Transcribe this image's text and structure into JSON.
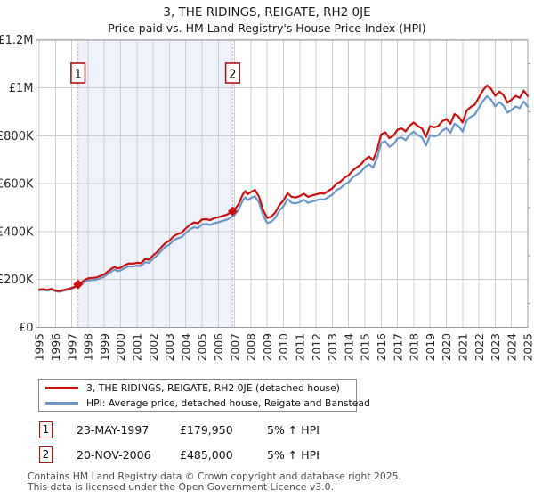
{
  "header": {
    "title": "3, THE RIDINGS, REIGATE, RH2 0JE",
    "subtitle": "Price paid vs. HM Land Registry's House Price Index (HPI)"
  },
  "chart_data": {
    "type": "line",
    "title": "3, THE RIDINGS, REIGATE, RH2 0JE",
    "subtitle": "Price paid vs. HM Land Registry's House Price Index (HPI)",
    "x_axis": {
      "ticks": [
        1995,
        1996,
        1997,
        1998,
        1999,
        2000,
        2001,
        2002,
        2003,
        2004,
        2005,
        2006,
        2007,
        2008,
        2009,
        2010,
        2011,
        2012,
        2013,
        2014,
        2015,
        2016,
        2017,
        2018,
        2019,
        2020,
        2021,
        2022,
        2023,
        2024,
        2025
      ],
      "range": [
        1994.8,
        2025.3
      ]
    },
    "y_axis": {
      "unit": "GBP thousands",
      "range_k": [
        0,
        1200
      ],
      "tick_values_k": [
        0,
        200,
        400,
        600,
        800,
        1000,
        1200
      ],
      "tick_labels": [
        "£0",
        "£200K",
        "£400K",
        "£600K",
        "£800K",
        "£1M",
        "£1.2M"
      ],
      "minor_tick_step_k": 100
    },
    "grid": true,
    "legend_position": "bottom-left",
    "x": [
      1995,
      1995.25,
      1995.5,
      1995.75,
      1996,
      1996.25,
      1996.5,
      1996.75,
      1997,
      1997.25,
      1997.39,
      1997.6,
      1997.8,
      1998,
      1998.25,
      1998.5,
      1998.75,
      1999,
      1999.25,
      1999.5,
      1999.65,
      1999.8,
      2000,
      2000.25,
      2000.5,
      2000.75,
      2001,
      2001.25,
      2001.5,
      2001.75,
      2002,
      2002.25,
      2002.5,
      2002.75,
      2003,
      2003.25,
      2003.5,
      2003.75,
      2004,
      2004.25,
      2004.5,
      2004.75,
      2005,
      2005.25,
      2005.5,
      2005.75,
      2006,
      2006.25,
      2006.5,
      2006.75,
      2006.88,
      2007,
      2007.25,
      2007.5,
      2007.65,
      2007.8,
      2008,
      2008.25,
      2008.5,
      2008.75,
      2009,
      2009.25,
      2009.5,
      2009.75,
      2010,
      2010.25,
      2010.5,
      2010.75,
      2011,
      2011.25,
      2011.5,
      2011.75,
      2012,
      2012.25,
      2012.5,
      2012.75,
      2013,
      2013.25,
      2013.5,
      2013.75,
      2014,
      2014.25,
      2014.5,
      2014.75,
      2015,
      2015.25,
      2015.5,
      2015.75,
      2016,
      2016.25,
      2016.5,
      2016.75,
      2017,
      2017.25,
      2017.5,
      2017.75,
      2018,
      2018.25,
      2018.5,
      2018.75,
      2019,
      2019.25,
      2019.5,
      2019.75,
      2020,
      2020.25,
      2020.5,
      2020.75,
      2021,
      2021.25,
      2021.5,
      2021.75,
      2022,
      2022.25,
      2022.5,
      2022.75,
      2023,
      2023.25,
      2023.5,
      2023.75,
      2024,
      2024.25,
      2024.5,
      2024.75,
      2025
    ],
    "series": [
      {
        "name": "3, THE RIDINGS, REIGATE, RH2 0JE (detached house)",
        "color": "#cc0f0f",
        "values_k": [
          158,
          160,
          157,
          161,
          154,
          152,
          156,
          160,
          165,
          172,
          180,
          188,
          198,
          205,
          207,
          208,
          215,
          222,
          235,
          248,
          252,
          246,
          249,
          260,
          267,
          266,
          270,
          268,
          285,
          283,
          301,
          315,
          335,
          352,
          362,
          380,
          390,
          395,
          413,
          428,
          438,
          435,
          450,
          452,
          448,
          456,
          460,
          465,
          470,
          480,
          485,
          492,
          515,
          555,
          569,
          556,
          565,
          574,
          545,
          490,
          457,
          462,
          480,
          510,
          530,
          560,
          545,
          542,
          548,
          558,
          545,
          550,
          555,
          560,
          558,
          570,
          580,
          600,
          608,
          625,
          635,
          655,
          668,
          680,
          700,
          713,
          698,
          740,
          806,
          814,
          790,
          800,
          825,
          830,
          818,
          842,
          855,
          840,
          830,
          795,
          840,
          835,
          840,
          860,
          870,
          850,
          890,
          880,
          855,
          905,
          920,
          930,
          960,
          990,
          1010,
          995,
          966,
          984,
          970,
          938,
          950,
          966,
          958,
          988,
          965
        ]
      },
      {
        "name": "HPI: Average price, detached house, Reigate and Banstead",
        "color": "#6b96c8",
        "values_k": [
          155,
          157,
          154,
          158,
          151,
          149,
          153,
          157,
          162,
          169,
          171,
          180,
          189,
          196,
          198,
          199,
          205,
          212,
          224,
          237,
          241,
          235,
          238,
          248,
          255,
          254,
          258,
          256,
          272,
          270,
          287,
          301,
          320,
          336,
          346,
          363,
          372,
          377,
          394,
          409,
          418,
          415,
          430,
          432,
          428,
          435,
          439,
          444,
          449,
          458,
          463,
          470,
          492,
          530,
          543,
          531,
          540,
          548,
          520,
          468,
          436,
          441,
          458,
          487,
          506,
          535,
          520,
          518,
          523,
          533,
          520,
          525,
          530,
          535,
          533,
          544,
          554,
          573,
          581,
          597,
          606,
          626,
          638,
          649,
          669,
          681,
          667,
          707,
          770,
          777,
          754,
          764,
          788,
          793,
          781,
          804,
          817,
          802,
          793,
          759,
          802,
          797,
          802,
          821,
          831,
          812,
          850,
          840,
          817,
          864,
          879,
          888,
          917,
          945,
          965,
          950,
          922,
          940,
          926,
          896,
          907,
          922,
          915,
          943,
          921
        ]
      }
    ],
    "sales": [
      {
        "label": "1",
        "date": "23-MAY-1997",
        "year": 1997.39,
        "price": "£179,950",
        "price_k": 179.95,
        "vs_hpi": "5% ↑ HPI"
      },
      {
        "label": "2",
        "date": "20-NOV-2006",
        "year": 2006.88,
        "price": "£485,000",
        "price_k": 485,
        "vs_hpi": "5% ↑ HPI"
      }
    ],
    "shaded_span_years": [
      1997.39,
      2006.88
    ],
    "colors": {
      "shade": "#eef2fb",
      "grid": "#cccccc",
      "border": "#9a9a9a",
      "dashed": "#f48a8a",
      "annotation_border": "#b01515",
      "tick_text": "#262626"
    }
  },
  "footer": {
    "line1": "Contains HM Land Registry data © Crown copyright and database right 2025.",
    "line2": "This data is licensed under the Open Government Licence v3.0."
  }
}
